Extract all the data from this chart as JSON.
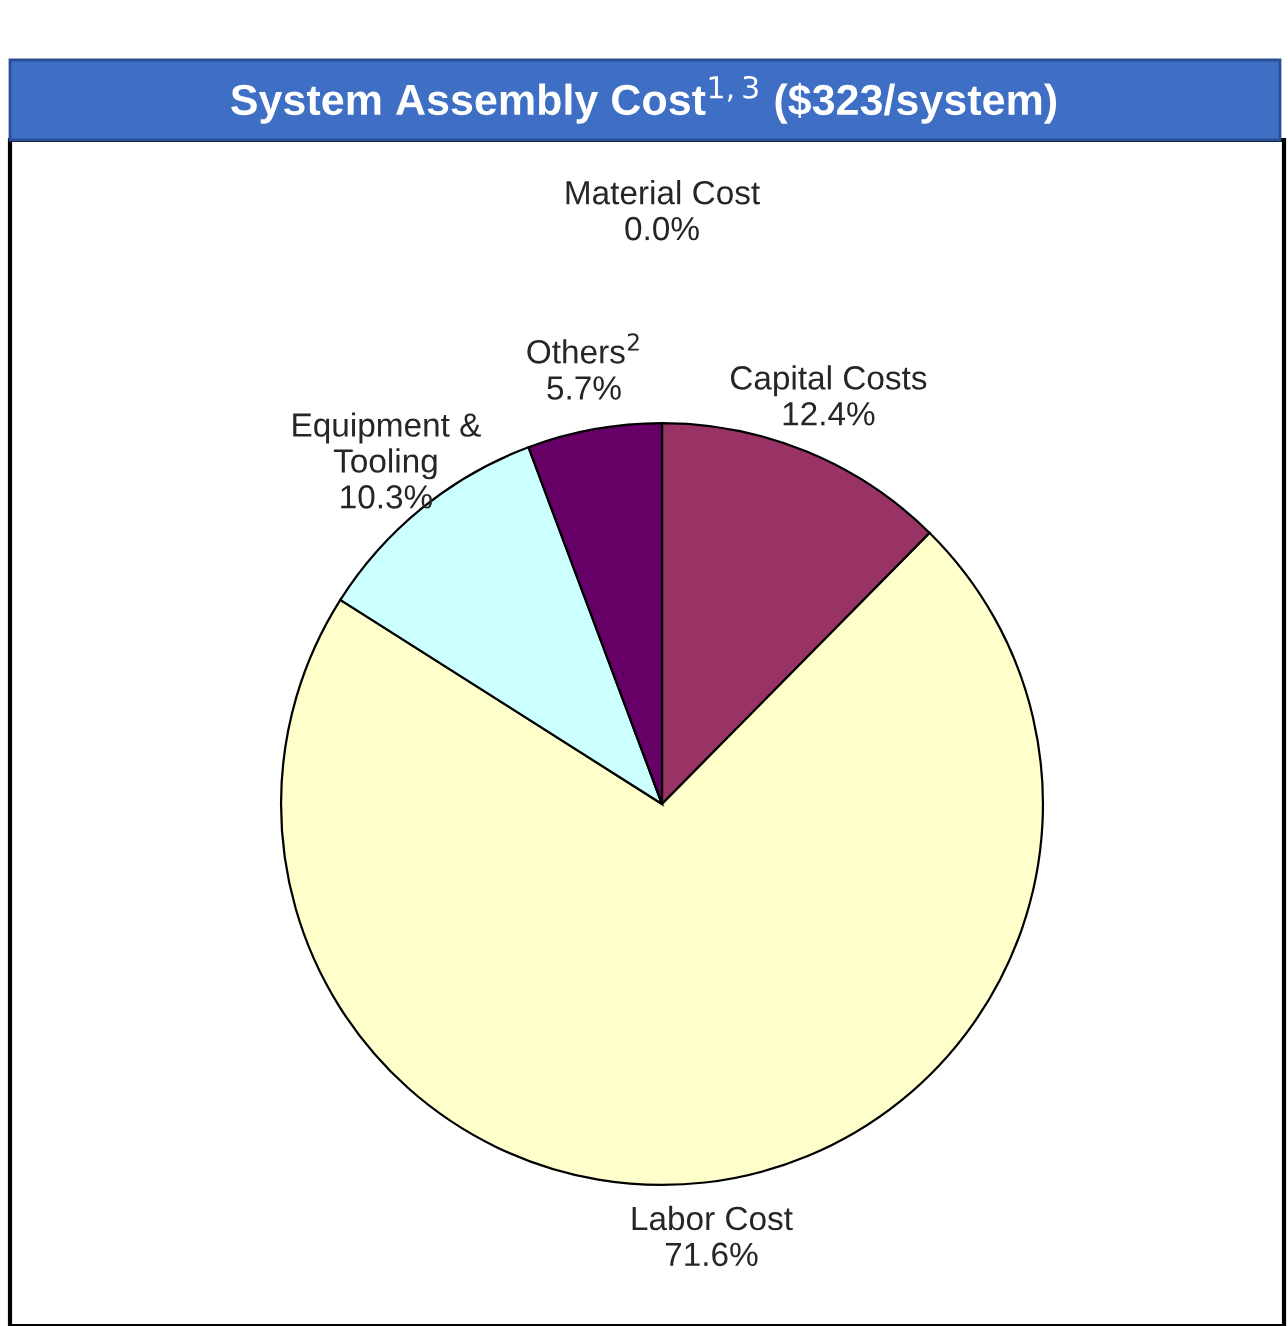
{
  "chart_data": {
    "type": "pie",
    "title": "System Assembly Cost$^{1,3}$ ($323/system)",
    "categories": [
      "Material Cost",
      "Capital Costs",
      "Labor Cost",
      "Equipment &\nTooling",
      "Others$^{2}$"
    ],
    "values": [
      0.0,
      12.4,
      71.6,
      10.3,
      5.7
    ],
    "value_labels": [
      "0.0%",
      "12.4%",
      "71.6%",
      "10.3%",
      "5.7%"
    ],
    "colors": [
      "#9999ff",
      "#993366",
      "#ffffcc",
      "#ccffff",
      "#660066"
    ],
    "legend": false
  }
}
